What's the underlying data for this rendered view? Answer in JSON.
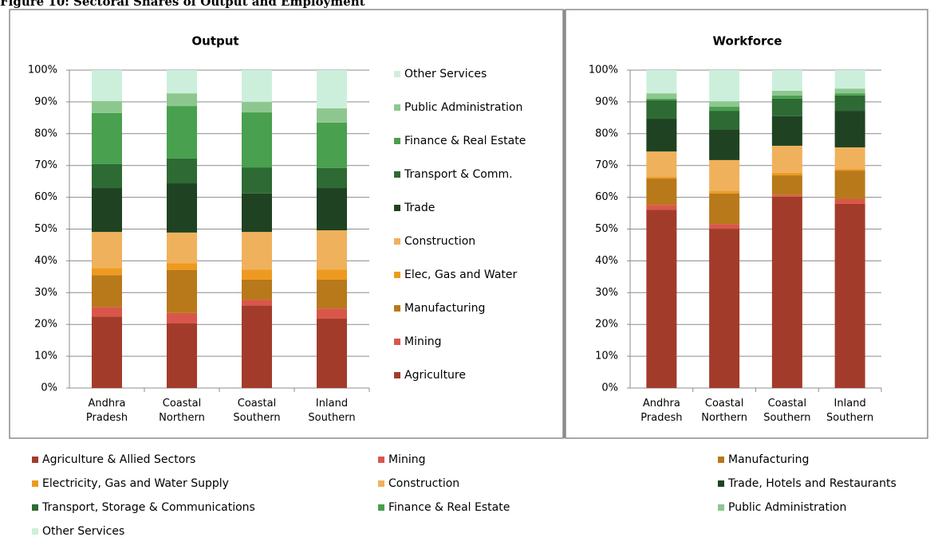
{
  "title": "Figure 10: Sectoral Shares of Output and Employment",
  "chart_data": [
    {
      "type": "bar",
      "stacked": true,
      "title": "Output",
      "legend": "right",
      "grid": true,
      "categories": [
        "Andhra Pradesh",
        "Coastal Northern",
        "Coastal Southern",
        "Inland Southern"
      ],
      "ylim": [
        0,
        100
      ],
      "yticks": [
        {
          "value": 0,
          "label": "0%"
        },
        {
          "value": 10,
          "label": "10%"
        },
        {
          "value": 20,
          "label": "20%"
        },
        {
          "value": 30,
          "label": "30%"
        },
        {
          "value": 40,
          "label": "40%"
        },
        {
          "value": 50,
          "label": "50%"
        },
        {
          "value": 60,
          "label": "60%"
        },
        {
          "value": 70,
          "label": "70%"
        },
        {
          "value": 80,
          "label": "80%"
        },
        {
          "value": 90,
          "label": "90%"
        },
        {
          "value": 100,
          "label": "100%"
        }
      ],
      "series": [
        {
          "name": "Agriculture",
          "color": "#a33b2b",
          "values": [
            22.5,
            20.3,
            26,
            21.8
          ]
        },
        {
          "name": "Mining",
          "color": "#d9574a",
          "values": [
            3,
            3.3,
            1.8,
            3.2
          ]
        },
        {
          "name": "Manufacturing",
          "color": "#b8791a",
          "values": [
            10,
            13.5,
            6.3,
            9.1
          ]
        },
        {
          "name": "Elec, Gas and Water",
          "color": "#ee9a20",
          "values": [
            2.2,
            2.2,
            3.2,
            3.2
          ]
        },
        {
          "name": "Construction",
          "color": "#f0b15c",
          "values": [
            11.4,
            9.6,
            11.8,
            12.3
          ]
        },
        {
          "name": "Trade",
          "color": "#1f4322",
          "values": [
            13.8,
            15.5,
            12.1,
            13.3
          ]
        },
        {
          "name": "Transport & Comm.",
          "color": "#2e6a34",
          "values": [
            7.6,
            7.8,
            8.2,
            6.3
          ]
        },
        {
          "name": "Finance & Real Estate",
          "color": "#49a04f",
          "values": [
            16,
            16.5,
            17.3,
            14.3
          ]
        },
        {
          "name": "Public Administration",
          "color": "#8dc78f",
          "values": [
            3.8,
            4,
            3.3,
            4.5
          ]
        },
        {
          "name": "Other Services",
          "color": "#ccefdc",
          "values": [
            9.7,
            7.3,
            10,
            12
          ]
        }
      ]
    },
    {
      "type": "bar",
      "stacked": true,
      "title": "Workforce",
      "legend": "bottom",
      "grid": true,
      "categories": [
        "Andhra Pradesh",
        "Coastal Northern",
        "Coastal Southern",
        "Inland Southern"
      ],
      "ylim": [
        0,
        100
      ],
      "yticks": [
        {
          "value": 0,
          "label": "0%"
        },
        {
          "value": 10,
          "label": "10%"
        },
        {
          "value": 20,
          "label": "20%"
        },
        {
          "value": 30,
          "label": "30%"
        },
        {
          "value": 40,
          "label": "40%"
        },
        {
          "value": 50,
          "label": "50%"
        },
        {
          "value": 60,
          "label": "60%"
        },
        {
          "value": 70,
          "label": "70%"
        },
        {
          "value": 80,
          "label": "80%"
        },
        {
          "value": 90,
          "label": "90%"
        },
        {
          "value": 100,
          "label": "100%"
        }
      ],
      "series": [
        {
          "name": "Agriculture & Allied Sectors",
          "color": "#a33b2b",
          "values": [
            56.1,
            50.1,
            60.2,
            57.9
          ]
        },
        {
          "name": "Mining",
          "color": "#d9574a",
          "values": [
            1.5,
            1.5,
            0.5,
            1.5
          ]
        },
        {
          "name": "Manufacturing",
          "color": "#b8791a",
          "values": [
            8.3,
            9.6,
            6.2,
            9
          ]
        },
        {
          "name": "Electricity, Gas and Water Supply",
          "color": "#ee9a20",
          "values": [
            0.5,
            0.7,
            0.8,
            0.5
          ]
        },
        {
          "name": "Construction",
          "color": "#f0b15c",
          "values": [
            8,
            9.8,
            8.5,
            6.8
          ]
        },
        {
          "name": "Trade, Hotels and Restaurants",
          "color": "#1f4322",
          "values": [
            10.3,
            9.5,
            9.3,
            11.5
          ]
        },
        {
          "name": "Transport, Storage & Communications",
          "color": "#2e6a34",
          "values": [
            5.8,
            6,
            5.5,
            4.8
          ]
        },
        {
          "name": "Finance & Real Estate",
          "color": "#49a04f",
          "values": [
            0.5,
            1.3,
            1,
            0.7
          ]
        },
        {
          "name": "Public Administration",
          "color": "#8dc78f",
          "values": [
            1.7,
            1.7,
            1.5,
            1.5
          ]
        },
        {
          "name": "Other Services",
          "color": "#ccefdc",
          "values": [
            7.3,
            9.8,
            6.5,
            5.8
          ]
        }
      ]
    }
  ]
}
